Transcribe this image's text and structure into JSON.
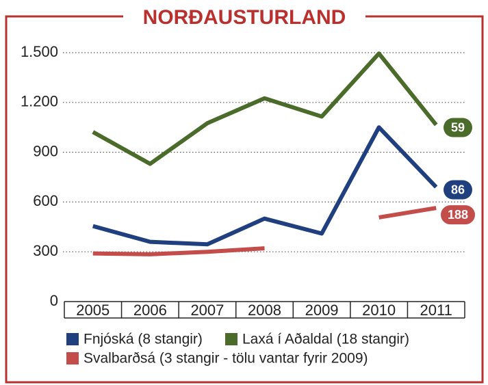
{
  "chart_data": {
    "type": "line",
    "title": "NORÐAUSTURLAND",
    "categories": [
      "2005",
      "2006",
      "2007",
      "2008",
      "2009",
      "2010",
      "2011"
    ],
    "series": [
      {
        "name": "Fnjóská (8 stangir)",
        "color": "#1f3f7e",
        "values": [
          455,
          360,
          345,
          500,
          410,
          1050,
          690
        ]
      },
      {
        "name": "Laxá í Aðaldal (18 stangir)",
        "color": "#4a6b2a",
        "values": [
          1022,
          830,
          1075,
          1225,
          1115,
          1495,
          1065
        ]
      },
      {
        "name": "Svalbarðsá (3 stangir - tölu vantar fyrir 2009)",
        "color": "#c24d4a",
        "values": [
          290,
          285,
          300,
          321,
          null,
          507,
          564
        ]
      }
    ],
    "annotations": [
      {
        "text": "59",
        "series": 1
      },
      {
        "text": "86",
        "series": 0
      },
      {
        "text": "188",
        "series": 2
      }
    ],
    "ylim": [
      0,
      1500
    ],
    "yticks": [
      0,
      300,
      600,
      900,
      {
        "value": 1200,
        "label": "1.200"
      },
      {
        "value": 1500,
        "label": "1.500"
      }
    ],
    "grid": true
  }
}
